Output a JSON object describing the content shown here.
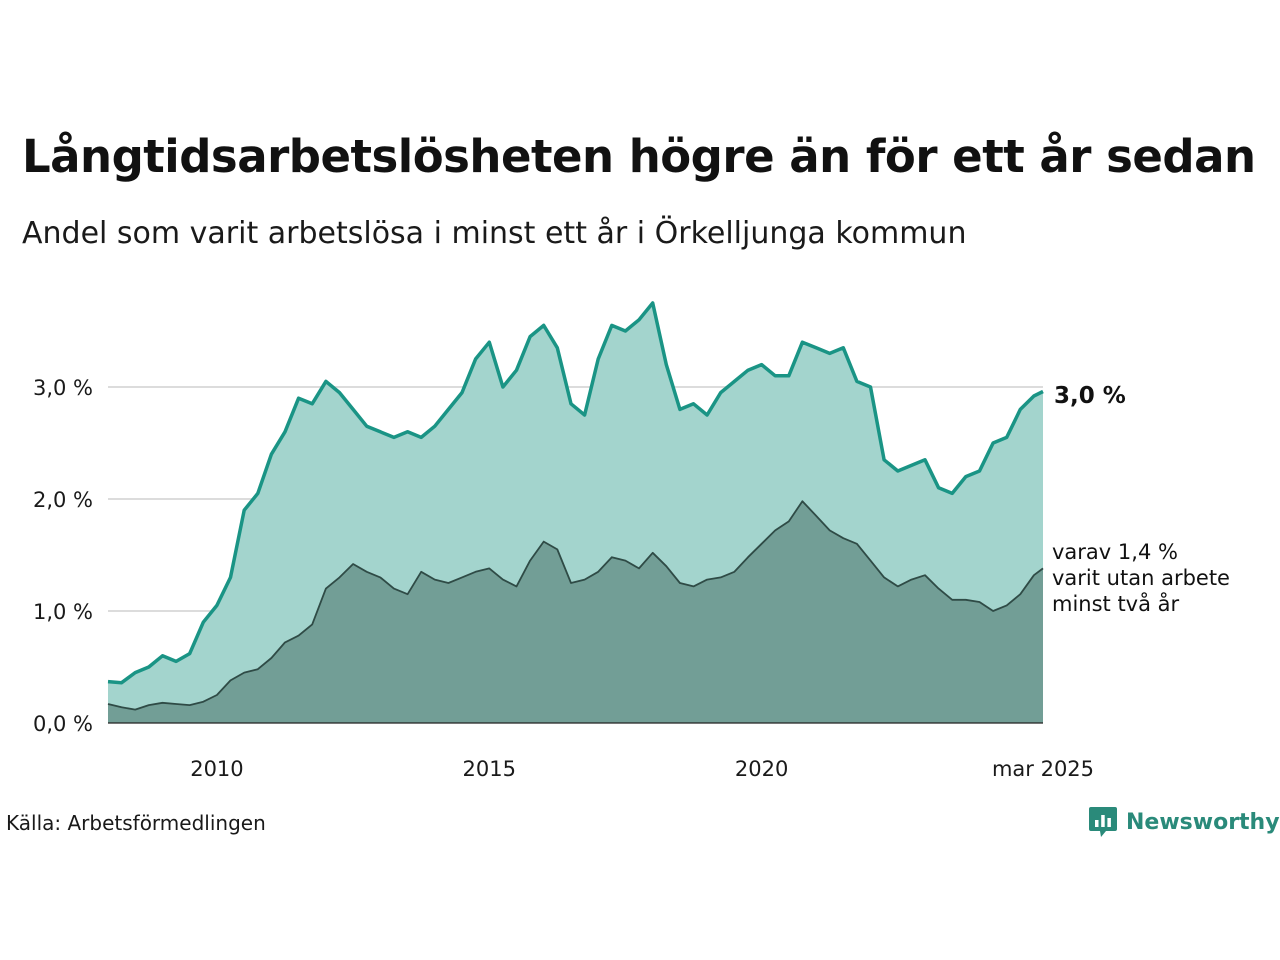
{
  "title": "Långtidsarbetslösheten högre än för ett år sedan",
  "subtitle": "Andel som varit arbetslösa i minst ett år i Örkelljunga kommun",
  "source": "Källa: Arbetsförmedlingen",
  "brand": "Newsworthy",
  "end_label": "3,0 %",
  "sub_label_lines": [
    "varav 1,4 %",
    "varit utan arbete",
    "minst två år"
  ],
  "colors": {
    "area_main": "#a3d4cd",
    "line_main": "#1a9485",
    "area_sub": "#729e96",
    "line_sub": "#2f4b46",
    "grid": "#dcdcdc",
    "brand": "#2a8a7a"
  },
  "chart_data": {
    "type": "area",
    "x_axis": {
      "type": "date",
      "min": "2008-01",
      "max": "2025-03",
      "tick_labels": [
        {
          "date": "2010-01",
          "label": "2010"
        },
        {
          "date": "2015-01",
          "label": "2015"
        },
        {
          "date": "2020-01",
          "label": "2020"
        },
        {
          "date": "2025-03",
          "label": "mar 2025"
        }
      ]
    },
    "y_axis": {
      "min": 0,
      "max": 3.8,
      "unit": "%",
      "tick_labels": [
        {
          "value": 0,
          "label": "0,0 %"
        },
        {
          "value": 1,
          "label": "1,0 %"
        },
        {
          "value": 2,
          "label": "2,0 %"
        },
        {
          "value": 3,
          "label": "3,0 %"
        }
      ]
    },
    "grid": true,
    "series": [
      {
        "name": "",
        "points": [
          [
            "2008-01",
            0.37
          ],
          [
            "2008-04",
            0.36
          ],
          [
            "2008-07",
            0.45
          ],
          [
            "2008-10",
            0.5
          ],
          [
            "2009-01",
            0.6
          ],
          [
            "2009-04",
            0.55
          ],
          [
            "2009-07",
            0.62
          ],
          [
            "2009-10",
            0.9
          ],
          [
            "2010-01",
            1.05
          ],
          [
            "2010-04",
            1.3
          ],
          [
            "2010-07",
            1.9
          ],
          [
            "2010-10",
            2.05
          ],
          [
            "2011-01",
            2.4
          ],
          [
            "2011-04",
            2.6
          ],
          [
            "2011-07",
            2.9
          ],
          [
            "2011-10",
            2.85
          ],
          [
            "2012-01",
            3.05
          ],
          [
            "2012-04",
            2.95
          ],
          [
            "2012-07",
            2.8
          ],
          [
            "2012-10",
            2.65
          ],
          [
            "2013-01",
            2.6
          ],
          [
            "2013-04",
            2.55
          ],
          [
            "2013-07",
            2.6
          ],
          [
            "2013-10",
            2.55
          ],
          [
            "2014-01",
            2.65
          ],
          [
            "2014-04",
            2.8
          ],
          [
            "2014-07",
            2.95
          ],
          [
            "2014-10",
            3.25
          ],
          [
            "2015-01",
            3.4
          ],
          [
            "2015-04",
            3.0
          ],
          [
            "2015-07",
            3.15
          ],
          [
            "2015-10",
            3.45
          ],
          [
            "2016-01",
            3.55
          ],
          [
            "2016-04",
            3.35
          ],
          [
            "2016-07",
            2.85
          ],
          [
            "2016-10",
            2.75
          ],
          [
            "2017-01",
            3.25
          ],
          [
            "2017-04",
            3.55
          ],
          [
            "2017-07",
            3.5
          ],
          [
            "2017-10",
            3.6
          ],
          [
            "2018-01",
            3.75
          ],
          [
            "2018-04",
            3.2
          ],
          [
            "2018-07",
            2.8
          ],
          [
            "2018-10",
            2.85
          ],
          [
            "2019-01",
            2.75
          ],
          [
            "2019-04",
            2.95
          ],
          [
            "2019-07",
            3.05
          ],
          [
            "2019-10",
            3.15
          ],
          [
            "2020-01",
            3.2
          ],
          [
            "2020-04",
            3.1
          ],
          [
            "2020-07",
            3.1
          ],
          [
            "2020-10",
            3.4
          ],
          [
            "2021-01",
            3.35
          ],
          [
            "2021-04",
            3.3
          ],
          [
            "2021-07",
            3.35
          ],
          [
            "2021-10",
            3.05
          ],
          [
            "2022-01",
            3.0
          ],
          [
            "2022-04",
            2.35
          ],
          [
            "2022-07",
            2.25
          ],
          [
            "2022-10",
            2.3
          ],
          [
            "2023-01",
            2.35
          ],
          [
            "2023-04",
            2.1
          ],
          [
            "2023-07",
            2.05
          ],
          [
            "2023-10",
            2.2
          ],
          [
            "2024-01",
            2.25
          ],
          [
            "2024-04",
            2.5
          ],
          [
            "2024-07",
            2.55
          ],
          [
            "2024-10",
            2.8
          ],
          [
            "2025-01",
            2.92
          ],
          [
            "2025-03",
            2.96
          ]
        ]
      },
      {
        "name": "",
        "points": [
          [
            "2008-01",
            0.17
          ],
          [
            "2008-04",
            0.14
          ],
          [
            "2008-07",
            0.12
          ],
          [
            "2008-10",
            0.16
          ],
          [
            "2009-01",
            0.18
          ],
          [
            "2009-04",
            0.17
          ],
          [
            "2009-07",
            0.16
          ],
          [
            "2009-10",
            0.19
          ],
          [
            "2010-01",
            0.25
          ],
          [
            "2010-04",
            0.38
          ],
          [
            "2010-07",
            0.45
          ],
          [
            "2010-10",
            0.48
          ],
          [
            "2011-01",
            0.58
          ],
          [
            "2011-04",
            0.72
          ],
          [
            "2011-07",
            0.78
          ],
          [
            "2011-10",
            0.88
          ],
          [
            "2012-01",
            1.2
          ],
          [
            "2012-04",
            1.3
          ],
          [
            "2012-07",
            1.42
          ],
          [
            "2012-10",
            1.35
          ],
          [
            "2013-01",
            1.3
          ],
          [
            "2013-04",
            1.2
          ],
          [
            "2013-07",
            1.15
          ],
          [
            "2013-10",
            1.35
          ],
          [
            "2014-01",
            1.28
          ],
          [
            "2014-04",
            1.25
          ],
          [
            "2014-07",
            1.3
          ],
          [
            "2014-10",
            1.35
          ],
          [
            "2015-01",
            1.38
          ],
          [
            "2015-04",
            1.28
          ],
          [
            "2015-07",
            1.22
          ],
          [
            "2015-10",
            1.45
          ],
          [
            "2016-01",
            1.62
          ],
          [
            "2016-04",
            1.55
          ],
          [
            "2016-07",
            1.25
          ],
          [
            "2016-10",
            1.28
          ],
          [
            "2017-01",
            1.35
          ],
          [
            "2017-04",
            1.48
          ],
          [
            "2017-07",
            1.45
          ],
          [
            "2017-10",
            1.38
          ],
          [
            "2018-01",
            1.52
          ],
          [
            "2018-04",
            1.4
          ],
          [
            "2018-07",
            1.25
          ],
          [
            "2018-10",
            1.22
          ],
          [
            "2019-01",
            1.28
          ],
          [
            "2019-04",
            1.3
          ],
          [
            "2019-07",
            1.35
          ],
          [
            "2019-10",
            1.48
          ],
          [
            "2020-01",
            1.6
          ],
          [
            "2020-04",
            1.72
          ],
          [
            "2020-07",
            1.8
          ],
          [
            "2020-10",
            1.98
          ],
          [
            "2021-01",
            1.85
          ],
          [
            "2021-04",
            1.72
          ],
          [
            "2021-07",
            1.65
          ],
          [
            "2021-10",
            1.6
          ],
          [
            "2022-01",
            1.45
          ],
          [
            "2022-04",
            1.3
          ],
          [
            "2022-07",
            1.22
          ],
          [
            "2022-10",
            1.28
          ],
          [
            "2023-01",
            1.32
          ],
          [
            "2023-04",
            1.2
          ],
          [
            "2023-07",
            1.1
          ],
          [
            "2023-10",
            1.1
          ],
          [
            "2024-01",
            1.08
          ],
          [
            "2024-04",
            1.0
          ],
          [
            "2024-07",
            1.05
          ],
          [
            "2024-10",
            1.15
          ],
          [
            "2025-01",
            1.32
          ],
          [
            "2025-03",
            1.38
          ]
        ]
      }
    ]
  }
}
